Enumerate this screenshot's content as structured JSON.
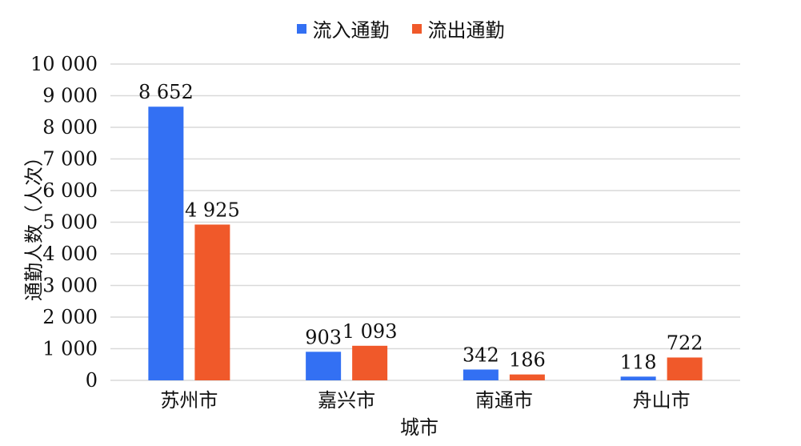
{
  "chart_data": {
    "type": "bar",
    "categories": [
      "苏州市",
      "嘉兴市",
      "南通市",
      "舟山市"
    ],
    "series": [
      {
        "name": "流入通勤",
        "values": [
          8652,
          903,
          342,
          118
        ],
        "labels": [
          "8 652",
          "903",
          "342",
          "118"
        ],
        "color": "#3370f3"
      },
      {
        "name": "流出通勤",
        "values": [
          4925,
          1093,
          186,
          722
        ],
        "labels": [
          "4 925",
          "1 093",
          "186",
          "722"
        ],
        "color": "#f0592a"
      }
    ],
    "xlabel": "城市",
    "ylabel": "通勤人数（人次）",
    "ylim": [
      0,
      10000
    ],
    "yticks": [
      0,
      1000,
      2000,
      3000,
      4000,
      5000,
      6000,
      7000,
      8000,
      9000,
      10000
    ],
    "ytick_labels": [
      "0",
      "1 000",
      "2 000",
      "3 000",
      "4 000",
      "5 000",
      "6 000",
      "7 000",
      "8 000",
      "9 000",
      "10 000"
    ],
    "grid": true,
    "legend_position": "top-center",
    "grid_color": "#d9d9d9"
  }
}
